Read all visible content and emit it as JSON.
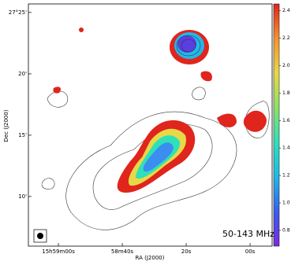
{
  "chart_data": {
    "type": "image",
    "xlabel": "RA (J2000)",
    "ylabel": "Dec (J2000)",
    "annotation": "50-143 MHz",
    "xlim": [
      69.4,
      -6.9
    ],
    "xticks": [
      {
        "value": 60,
        "label": "15h59m00s"
      },
      {
        "value": 40,
        "label": "58m40s"
      },
      {
        "value": 20,
        "label": "20s"
      },
      {
        "value": 0,
        "label": "00s"
      }
    ],
    "ylim": [
      27.0993,
      27.4283
    ],
    "yticks": [
      {
        "value": 27.4167,
        "label": "27°25'"
      },
      {
        "value": 27.3333,
        "label": "20'"
      },
      {
        "value": 27.25,
        "label": "15'"
      },
      {
        "value": 27.1667,
        "label": "10'"
      }
    ],
    "colorbar": {
      "clim": [
        0.685,
        2.45
      ],
      "ticks": [
        0.8,
        {
          "value": 1,
          "label": "1.0"
        },
        1.2,
        1.4,
        1.6,
        1.8,
        {
          "value": 2,
          "label": "2.0"
        },
        2.2,
        2.4
      ],
      "colors": [
        "#7b2bd9",
        "#3b5df0",
        "#21b8e8",
        "#2fe0b8",
        "#8ee06a",
        "#e8d848",
        "#f5922f",
        "#e0251c"
      ]
    }
  }
}
